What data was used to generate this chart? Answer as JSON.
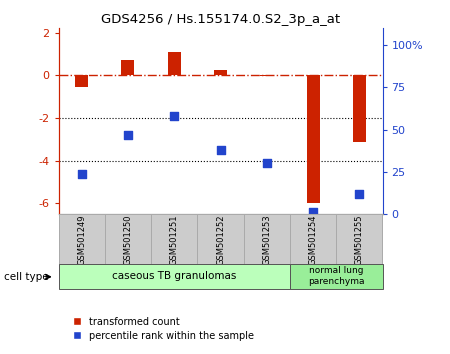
{
  "title": "GDS4256 / Hs.155174.0.S2_3p_a_at",
  "samples": [
    "GSM501249",
    "GSM501250",
    "GSM501251",
    "GSM501252",
    "GSM501253",
    "GSM501254",
    "GSM501255"
  ],
  "red_values": [
    -0.55,
    0.72,
    1.1,
    0.25,
    -0.05,
    -6.0,
    -3.1
  ],
  "blue_percentiles": [
    24,
    47,
    58,
    38,
    30,
    1,
    12
  ],
  "ylim_left": [
    -6.5,
    2.2
  ],
  "ylim_right": [
    0,
    110
  ],
  "left_ticks": [
    2,
    0,
    -2,
    -4,
    -6
  ],
  "right_ticks": [
    100,
    75,
    50,
    25,
    0
  ],
  "right_tick_labels": [
    "100%",
    "75",
    "50",
    "25",
    "0"
  ],
  "group1_label": "caseous TB granulomas",
  "group2_label": "normal lung\nparenchyma",
  "group1_color": "#bbffbb",
  "group2_color": "#99ee99",
  "cell_type_label": "cell type",
  "legend_red": "transformed count",
  "legend_blue": "percentile rank within the sample",
  "red_color": "#cc2200",
  "blue_color": "#2244cc",
  "bar_width": 0.28,
  "dashed_line_color": "#cc2200",
  "dotted_line_color": "#000000",
  "gray_box_color": "#cccccc",
  "gray_box_edge": "#aaaaaa"
}
